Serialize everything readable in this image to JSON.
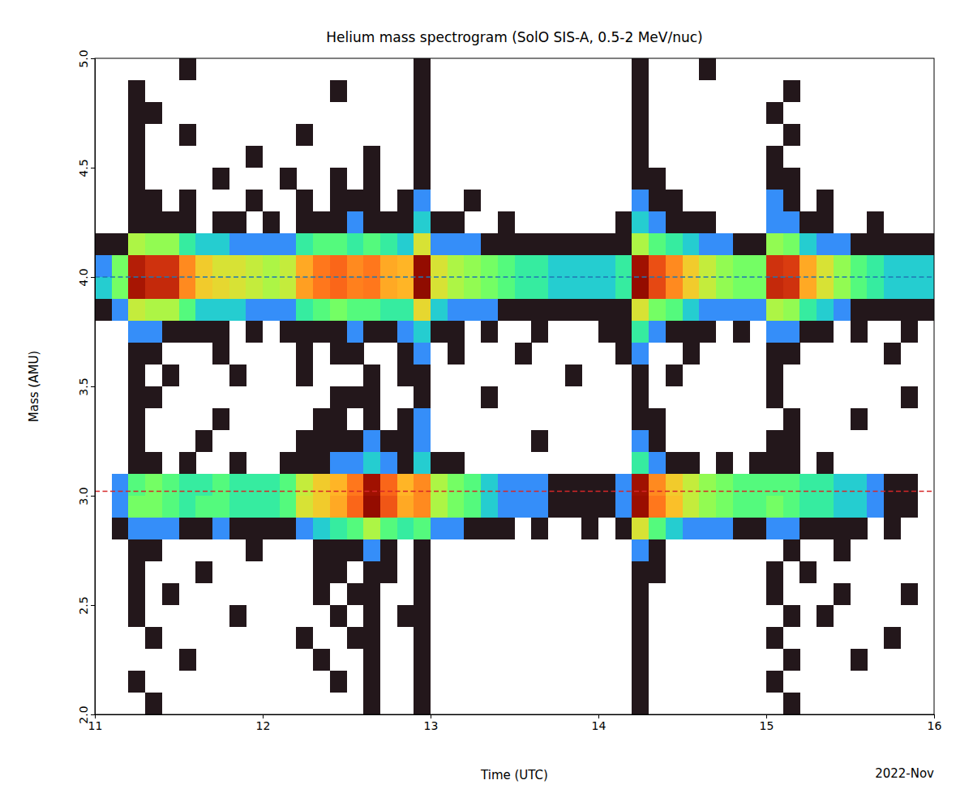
{
  "chart_data": {
    "type": "heatmap",
    "title": "Helium mass spectrogram (SolO SIS-A, 0.5-2 MeV/nuc)",
    "x_label": "Time (UTC)",
    "y_label": "Mass (AMU)",
    "x_axis_note": "2022-Nov",
    "xlim": [
      11,
      16
    ],
    "xticks": [
      11,
      12,
      13,
      14,
      15,
      16
    ],
    "ylim": [
      2,
      5
    ],
    "yticks": [
      {
        "value": 2,
        "label": "2.0"
      },
      2.5,
      {
        "value": 3,
        "label": "3.0"
      },
      3.5,
      {
        "value": 4,
        "label": "4.0"
      },
      4.5,
      {
        "value": 5,
        "label": "5.0"
      }
    ],
    "zlim": [
      1,
      50
    ],
    "x_bins": [
      11,
      11.1,
      11.2,
      11.3,
      11.4,
      11.5,
      11.6,
      11.7,
      11.8,
      11.9,
      12,
      12.1,
      12.2,
      12.3,
      12.4,
      12.5,
      12.6,
      12.7,
      12.8,
      12.9,
      13,
      13.1,
      13.2,
      13.3,
      13.4,
      13.5,
      13.6,
      13.7,
      13.8,
      13.9,
      14,
      14.1,
      14.2,
      14.3,
      14.4,
      14.5,
      14.6,
      14.7,
      14.8,
      14.9,
      15,
      15.1,
      15.2,
      15.3,
      15.4,
      15.5,
      15.6,
      15.7,
      15.8,
      15.9,
      16
    ],
    "y_bins": [
      2,
      2.1,
      2.2,
      2.3,
      2.4,
      2.5,
      2.6,
      2.7,
      2.8,
      2.9,
      3,
      3.1,
      3.2,
      3.3,
      3.4,
      3.5,
      3.6,
      3.7,
      3.8,
      3.9,
      4,
      4.1,
      4.2,
      4.3,
      4.4,
      4.5,
      4.6,
      4.7,
      4.8,
      4.9,
      5
    ],
    "z": [
      [
        0,
        0,
        0,
        1,
        0,
        0,
        0,
        0,
        0,
        0,
        0,
        0,
        0,
        0,
        0,
        0,
        1,
        0,
        0,
        1,
        0,
        0,
        0,
        0,
        0,
        0,
        0,
        0,
        0,
        0,
        0,
        0,
        1,
        0,
        0,
        0,
        0,
        0,
        0,
        0,
        0,
        1,
        0,
        0,
        0,
        0,
        0,
        0,
        0,
        0
      ],
      [
        0,
        0,
        1,
        0,
        0,
        0,
        0,
        0,
        0,
        0,
        0,
        0,
        0,
        0,
        1,
        0,
        1,
        0,
        0,
        1,
        0,
        0,
        0,
        0,
        0,
        0,
        0,
        0,
        0,
        0,
        0,
        0,
        1,
        0,
        0,
        0,
        0,
        0,
        0,
        0,
        1,
        0,
        0,
        0,
        0,
        0,
        0,
        0,
        0,
        0
      ],
      [
        0,
        0,
        0,
        0,
        0,
        1,
        0,
        0,
        0,
        0,
        0,
        0,
        0,
        1,
        0,
        0,
        1,
        0,
        0,
        1,
        0,
        0,
        0,
        0,
        0,
        0,
        0,
        0,
        0,
        0,
        0,
        0,
        1,
        0,
        0,
        0,
        0,
        0,
        0,
        0,
        0,
        1,
        0,
        0,
        0,
        1,
        0,
        0,
        0,
        0
      ],
      [
        0,
        0,
        0,
        1,
        0,
        0,
        0,
        0,
        0,
        0,
        0,
        0,
        1,
        0,
        0,
        1,
        1,
        0,
        0,
        1,
        0,
        0,
        0,
        0,
        0,
        0,
        0,
        0,
        0,
        0,
        0,
        0,
        1,
        0,
        0,
        0,
        0,
        0,
        0,
        0,
        1,
        0,
        0,
        0,
        0,
        0,
        0,
        1,
        0,
        0
      ],
      [
        0,
        0,
        1,
        0,
        0,
        0,
        0,
        0,
        1,
        0,
        0,
        0,
        0,
        0,
        1,
        0,
        1,
        0,
        1,
        1,
        0,
        0,
        0,
        0,
        0,
        0,
        0,
        0,
        0,
        0,
        0,
        0,
        1,
        0,
        0,
        0,
        0,
        0,
        0,
        0,
        0,
        1,
        0,
        1,
        0,
        0,
        0,
        0,
        0,
        0
      ],
      [
        0,
        0,
        1,
        0,
        1,
        0,
        0,
        0,
        0,
        0,
        0,
        0,
        0,
        1,
        0,
        1,
        1,
        0,
        0,
        1,
        0,
        0,
        0,
        0,
        0,
        0,
        0,
        0,
        0,
        0,
        0,
        0,
        1,
        0,
        0,
        0,
        0,
        0,
        0,
        0,
        1,
        0,
        0,
        0,
        1,
        0,
        0,
        0,
        1,
        0
      ],
      [
        0,
        0,
        1,
        0,
        0,
        0,
        1,
        0,
        0,
        0,
        0,
        0,
        0,
        1,
        1,
        0,
        1,
        1,
        0,
        1,
        0,
        0,
        0,
        0,
        0,
        0,
        0,
        0,
        0,
        0,
        0,
        0,
        1,
        1,
        0,
        0,
        0,
        0,
        0,
        0,
        1,
        0,
        1,
        0,
        0,
        0,
        0,
        0,
        0,
        0
      ],
      [
        0,
        0,
        1,
        1,
        0,
        0,
        0,
        0,
        0,
        1,
        0,
        0,
        0,
        1,
        1,
        1,
        2,
        1,
        0,
        1,
        0,
        0,
        0,
        0,
        0,
        0,
        0,
        0,
        0,
        0,
        0,
        0,
        2,
        1,
        0,
        0,
        0,
        0,
        0,
        0,
        0,
        1,
        0,
        0,
        1,
        0,
        0,
        0,
        0,
        0
      ],
      [
        0,
        1,
        2,
        2,
        2,
        1,
        1,
        2,
        1,
        1,
        1,
        1,
        2,
        3,
        4,
        5,
        8,
        5,
        4,
        5,
        2,
        2,
        1,
        1,
        1,
        0,
        1,
        0,
        0,
        1,
        0,
        1,
        10,
        5,
        3,
        2,
        2,
        2,
        1,
        1,
        2,
        2,
        1,
        1,
        1,
        1,
        0,
        1,
        0,
        0
      ],
      [
        0,
        2,
        6,
        6,
        5,
        4,
        5,
        5,
        4,
        4,
        4,
        5,
        10,
        12,
        15,
        22,
        45,
        24,
        15,
        18,
        8,
        6,
        5,
        3,
        2,
        2,
        2,
        1,
        1,
        1,
        1,
        2,
        42,
        20,
        13,
        9,
        7,
        6,
        5,
        5,
        6,
        5,
        4,
        4,
        3,
        3,
        2,
        1,
        1,
        0
      ],
      [
        0,
        2,
        5,
        6,
        5,
        4,
        4,
        5,
        4,
        4,
        4,
        5,
        9,
        12,
        14,
        20,
        40,
        22,
        14,
        18,
        8,
        6,
        5,
        3,
        2,
        2,
        2,
        1,
        1,
        1,
        1,
        2,
        40,
        18,
        12,
        9,
        7,
        6,
        5,
        5,
        5,
        5,
        4,
        4,
        3,
        3,
        2,
        1,
        1,
        0
      ],
      [
        0,
        0,
        1,
        1,
        0,
        1,
        0,
        0,
        1,
        0,
        0,
        1,
        1,
        1,
        2,
        2,
        3,
        2,
        1,
        3,
        1,
        1,
        0,
        0,
        0,
        0,
        0,
        0,
        0,
        0,
        0,
        0,
        4,
        2,
        1,
        1,
        0,
        1,
        0,
        1,
        1,
        1,
        0,
        1,
        0,
        0,
        0,
        0,
        0,
        0
      ],
      [
        0,
        0,
        1,
        0,
        0,
        0,
        1,
        0,
        0,
        0,
        0,
        0,
        1,
        1,
        1,
        1,
        2,
        1,
        1,
        2,
        0,
        0,
        0,
        0,
        0,
        0,
        1,
        0,
        0,
        0,
        0,
        0,
        2,
        1,
        0,
        0,
        0,
        0,
        0,
        0,
        1,
        1,
        0,
        0,
        0,
        0,
        0,
        0,
        0,
        0
      ],
      [
        0,
        0,
        1,
        0,
        0,
        0,
        0,
        1,
        0,
        0,
        0,
        0,
        0,
        1,
        1,
        0,
        1,
        0,
        1,
        2,
        0,
        0,
        0,
        0,
        0,
        0,
        0,
        0,
        0,
        0,
        0,
        0,
        1,
        1,
        0,
        0,
        0,
        0,
        0,
        0,
        0,
        1,
        0,
        0,
        0,
        1,
        0,
        0,
        0,
        0
      ],
      [
        0,
        0,
        1,
        1,
        0,
        0,
        0,
        0,
        0,
        0,
        0,
        0,
        0,
        0,
        1,
        1,
        1,
        0,
        0,
        1,
        0,
        0,
        0,
        1,
        0,
        0,
        0,
        0,
        0,
        0,
        0,
        0,
        1,
        0,
        0,
        0,
        0,
        0,
        0,
        0,
        1,
        0,
        0,
        0,
        0,
        0,
        0,
        0,
        1,
        0
      ],
      [
        0,
        0,
        1,
        0,
        1,
        0,
        0,
        0,
        1,
        0,
        0,
        0,
        1,
        0,
        0,
        0,
        1,
        0,
        1,
        1,
        0,
        0,
        0,
        0,
        0,
        0,
        0,
        0,
        1,
        0,
        0,
        0,
        1,
        0,
        1,
        0,
        0,
        0,
        0,
        0,
        1,
        0,
        0,
        0,
        0,
        0,
        0,
        0,
        0,
        0
      ],
      [
        0,
        0,
        1,
        1,
        0,
        0,
        0,
        1,
        0,
        0,
        0,
        0,
        1,
        0,
        1,
        1,
        0,
        0,
        1,
        2,
        0,
        1,
        0,
        0,
        0,
        1,
        0,
        0,
        0,
        0,
        0,
        1,
        2,
        0,
        0,
        1,
        0,
        0,
        0,
        0,
        1,
        1,
        0,
        0,
        0,
        0,
        0,
        1,
        0,
        0
      ],
      [
        0,
        0,
        2,
        2,
        1,
        1,
        1,
        1,
        0,
        1,
        0,
        1,
        1,
        1,
        1,
        2,
        1,
        1,
        2,
        3,
        1,
        1,
        0,
        1,
        0,
        0,
        1,
        0,
        0,
        0,
        1,
        1,
        4,
        2,
        1,
        1,
        1,
        0,
        1,
        0,
        2,
        2,
        1,
        1,
        0,
        1,
        0,
        0,
        1,
        0
      ],
      [
        1,
        2,
        9,
        8,
        8,
        5,
        3,
        3,
        3,
        2,
        2,
        2,
        4,
        5,
        6,
        5,
        5,
        4,
        4,
        11,
        3,
        2,
        2,
        2,
        1,
        1,
        1,
        1,
        1,
        1,
        1,
        1,
        10,
        6,
        5,
        3,
        2,
        2,
        2,
        2,
        8,
        7,
        4,
        3,
        2,
        1,
        1,
        1,
        1,
        1
      ],
      [
        3,
        6,
        38,
        32,
        32,
        18,
        12,
        11,
        10,
        9,
        8,
        9,
        16,
        20,
        22,
        19,
        20,
        15,
        14,
        50,
        10,
        8,
        7,
        6,
        5,
        4,
        4,
        3,
        3,
        3,
        3,
        4,
        45,
        26,
        18,
        12,
        9,
        7,
        6,
        6,
        32,
        30,
        15,
        10,
        7,
        5,
        4,
        3,
        3,
        3
      ],
      [
        2,
        6,
        35,
        30,
        30,
        18,
        12,
        10,
        10,
        9,
        8,
        9,
        15,
        20,
        22,
        18,
        20,
        15,
        14,
        45,
        10,
        8,
        7,
        6,
        5,
        4,
        4,
        3,
        3,
        3,
        3,
        4,
        40,
        25,
        18,
        12,
        9,
        7,
        6,
        6,
        30,
        28,
        15,
        10,
        7,
        5,
        4,
        3,
        3,
        3
      ],
      [
        1,
        1,
        8,
        7,
        7,
        4,
        3,
        3,
        2,
        2,
        2,
        2,
        4,
        5,
        5,
        4,
        5,
        4,
        3,
        10,
        2,
        2,
        2,
        1,
        1,
        1,
        1,
        1,
        1,
        1,
        1,
        1,
        8,
        5,
        4,
        3,
        2,
        2,
        1,
        1,
        7,
        6,
        3,
        2,
        2,
        1,
        1,
        1,
        1,
        1
      ],
      [
        0,
        0,
        1,
        1,
        1,
        1,
        0,
        1,
        1,
        0,
        1,
        0,
        1,
        1,
        1,
        2,
        1,
        1,
        1,
        3,
        1,
        1,
        0,
        0,
        1,
        0,
        0,
        0,
        0,
        0,
        0,
        1,
        3,
        2,
        1,
        1,
        1,
        0,
        0,
        0,
        2,
        2,
        1,
        1,
        0,
        0,
        1,
        0,
        0,
        0
      ],
      [
        0,
        0,
        1,
        1,
        0,
        1,
        0,
        0,
        0,
        1,
        0,
        0,
        1,
        0,
        1,
        1,
        1,
        0,
        1,
        2,
        0,
        0,
        1,
        0,
        0,
        0,
        0,
        0,
        0,
        0,
        0,
        0,
        2,
        1,
        1,
        0,
        0,
        0,
        0,
        0,
        2,
        1,
        0,
        1,
        0,
        0,
        0,
        0,
        0,
        0
      ],
      [
        0,
        0,
        1,
        0,
        0,
        0,
        0,
        1,
        0,
        0,
        0,
        1,
        0,
        0,
        1,
        0,
        1,
        0,
        0,
        1,
        0,
        0,
        0,
        0,
        0,
        0,
        0,
        0,
        0,
        0,
        0,
        0,
        1,
        1,
        0,
        0,
        0,
        0,
        0,
        0,
        1,
        1,
        0,
        0,
        0,
        0,
        0,
        0,
        0,
        0
      ],
      [
        0,
        0,
        1,
        0,
        0,
        0,
        0,
        0,
        0,
        1,
        0,
        0,
        0,
        0,
        0,
        0,
        1,
        0,
        0,
        1,
        0,
        0,
        0,
        0,
        0,
        0,
        0,
        0,
        0,
        0,
        0,
        0,
        1,
        0,
        0,
        0,
        0,
        0,
        0,
        0,
        1,
        0,
        0,
        0,
        0,
        0,
        0,
        0,
        0,
        0
      ],
      [
        0,
        0,
        1,
        0,
        0,
        1,
        0,
        0,
        0,
        0,
        0,
        0,
        1,
        0,
        0,
        0,
        0,
        0,
        0,
        1,
        0,
        0,
        0,
        0,
        0,
        0,
        0,
        0,
        0,
        0,
        0,
        0,
        1,
        0,
        0,
        0,
        0,
        0,
        0,
        0,
        0,
        1,
        0,
        0,
        0,
        0,
        0,
        0,
        0,
        0
      ],
      [
        0,
        0,
        1,
        1,
        0,
        0,
        0,
        0,
        0,
        0,
        0,
        0,
        0,
        0,
        0,
        0,
        0,
        0,
        0,
        1,
        0,
        0,
        0,
        0,
        0,
        0,
        0,
        0,
        0,
        0,
        0,
        0,
        1,
        0,
        0,
        0,
        0,
        0,
        0,
        0,
        1,
        0,
        0,
        0,
        0,
        0,
        0,
        0,
        0,
        0
      ],
      [
        0,
        0,
        1,
        0,
        0,
        0,
        0,
        0,
        0,
        0,
        0,
        0,
        0,
        0,
        1,
        0,
        0,
        0,
        0,
        1,
        0,
        0,
        0,
        0,
        0,
        0,
        0,
        0,
        0,
        0,
        0,
        0,
        1,
        0,
        0,
        0,
        0,
        0,
        0,
        0,
        0,
        1,
        0,
        0,
        0,
        0,
        0,
        0,
        0,
        0
      ],
      [
        0,
        0,
        0,
        0,
        0,
        1,
        0,
        0,
        0,
        0,
        0,
        0,
        0,
        0,
        0,
        0,
        0,
        0,
        0,
        1,
        0,
        0,
        0,
        0,
        0,
        0,
        0,
        0,
        0,
        0,
        0,
        0,
        1,
        0,
        0,
        0,
        1,
        0,
        0,
        0,
        0,
        0,
        0,
        0,
        0,
        0,
        0,
        0,
        0,
        0
      ]
    ],
    "reference_lines": [
      {
        "value": 4.0,
        "color": "#1f77b4",
        "line_style": "dashed"
      },
      {
        "value": 3.02,
        "color": "#d62728",
        "line_style": "dashed"
      }
    ]
  }
}
